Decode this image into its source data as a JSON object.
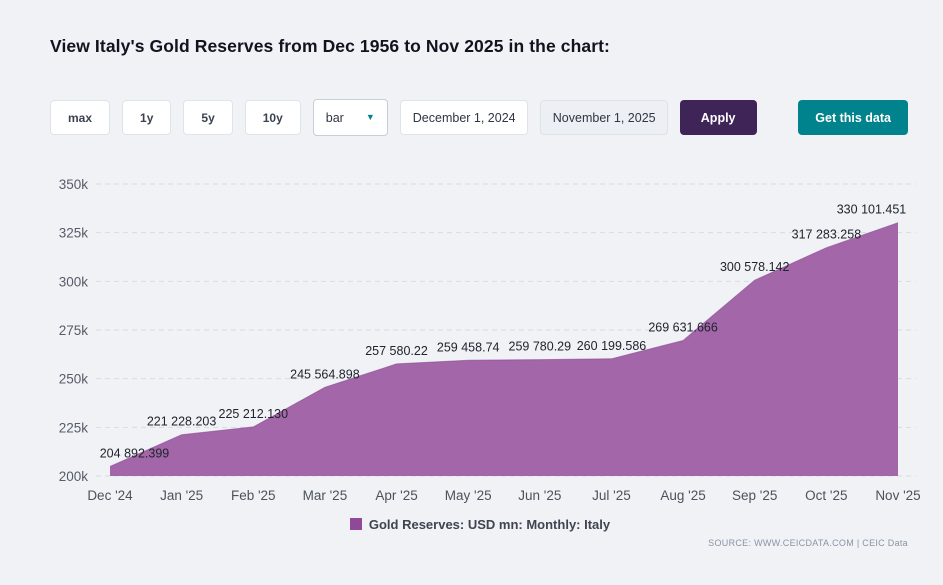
{
  "header": {
    "title": "View Italy's Gold Reserves from Dec 1956 to Nov 2025 in the chart:"
  },
  "controls": {
    "ranges": [
      "max",
      "1y",
      "5y",
      "10y"
    ],
    "chart_type_value": "bar",
    "start_date": "December 1, 2024",
    "end_date": "November 1, 2025",
    "apply_label": "Apply",
    "get_data_label": "Get this data"
  },
  "chart_data": {
    "type": "area",
    "title": "",
    "categories": [
      "Dec '24",
      "Jan '25",
      "Feb '25",
      "Mar '25",
      "Apr '25",
      "May '25",
      "Jun '25",
      "Jul '25",
      "Aug '25",
      "Sep '25",
      "Oct '25",
      "Nov '25"
    ],
    "values": [
      204892.399,
      221228.203,
      225212.13,
      245564.898,
      257580.22,
      259458.74,
      259780.29,
      260199.586,
      269631.666,
      300578.142,
      317283.258,
      330101.451
    ],
    "value_labels": [
      "204 892.399",
      "221 228.203",
      "225 212.130",
      "245 564.898",
      "257 580.22",
      "259 458.74",
      "259 780.29",
      "260 199.586",
      "269 631.666",
      "300 578.142",
      "317 283.258",
      "330 101.451"
    ],
    "series_name": "Gold Reserves: USD mn: Monthly: Italy",
    "xlabel": "",
    "ylabel": "",
    "ylim": [
      200000,
      350000
    ],
    "ytick_labels": [
      "200k",
      "225k",
      "250k",
      "275k",
      "300k",
      "325k",
      "350k"
    ],
    "grid": "dashed horizontal",
    "legend_position": "bottom",
    "colors": {
      "area_fill": "#a266a9",
      "area_edge": "#8a4792",
      "legend_swatch": "#8e4a96"
    }
  },
  "footer": {
    "source": "SOURCE: WWW.CEICDATA.COM | CEIC Data"
  }
}
